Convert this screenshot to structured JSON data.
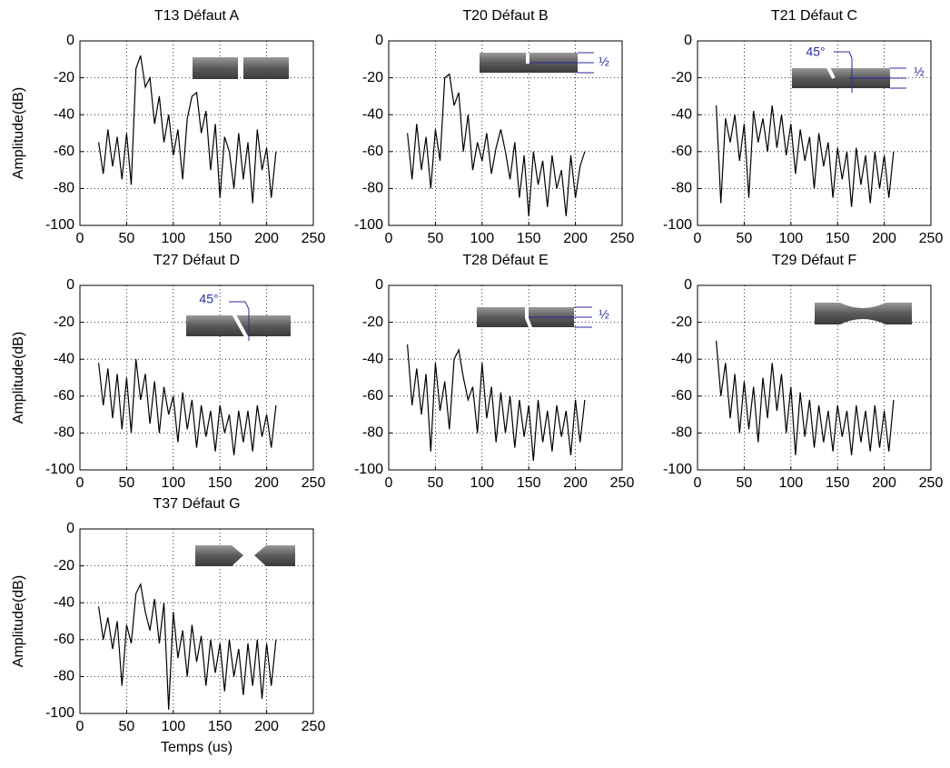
{
  "chart_data": [
    {
      "type": "line",
      "title": "T13 Défaut A",
      "ylabel": "Amplitude(dB)",
      "color": "#000000",
      "grid": true,
      "xlim": [
        0,
        250
      ],
      "xticks": [
        0,
        50,
        100,
        150,
        200,
        250
      ],
      "ylim": [
        -100,
        0
      ],
      "yticks": [
        -100,
        -80,
        -60,
        -40,
        -20,
        0
      ],
      "x": [
        20,
        25,
        30,
        35,
        40,
        45,
        50,
        55,
        60,
        65,
        70,
        75,
        80,
        85,
        90,
        95,
        100,
        105,
        110,
        115,
        120,
        125,
        130,
        135,
        140,
        145,
        150,
        155,
        160,
        165,
        170,
        175,
        180,
        185,
        190,
        195,
        200,
        205,
        210
      ],
      "values": [
        -55,
        -72,
        -48,
        -68,
        -52,
        -75,
        -50,
        -78,
        -15,
        -8,
        -25,
        -20,
        -45,
        -30,
        -55,
        -40,
        -62,
        -48,
        -75,
        -42,
        -30,
        -28,
        -50,
        -38,
        -70,
        -45,
        -85,
        -52,
        -60,
        -80,
        -50,
        -75,
        -55,
        -88,
        -48,
        -70,
        -58,
        -85,
        -60
      ]
    },
    {
      "type": "line",
      "title": "T20 Défaut B",
      "color": "#000000",
      "grid": true,
      "annotations": [
        "½"
      ],
      "xlim": [
        0,
        250
      ],
      "xticks": [
        0,
        50,
        100,
        150,
        200,
        250
      ],
      "ylim": [
        -100,
        0
      ],
      "yticks": [
        -100,
        -80,
        -60,
        -40,
        -20,
        0
      ],
      "x": [
        20,
        25,
        30,
        35,
        40,
        45,
        50,
        55,
        60,
        65,
        70,
        75,
        80,
        85,
        90,
        95,
        100,
        105,
        110,
        115,
        120,
        125,
        130,
        135,
        140,
        145,
        150,
        155,
        160,
        165,
        170,
        175,
        180,
        185,
        190,
        195,
        200,
        205,
        210
      ],
      "values": [
        -50,
        -75,
        -45,
        -70,
        -52,
        -80,
        -48,
        -65,
        -20,
        -18,
        -35,
        -28,
        -60,
        -40,
        -70,
        -55,
        -65,
        -50,
        -72,
        -58,
        -48,
        -60,
        -75,
        -55,
        -85,
        -62,
        -95,
        -60,
        -78,
        -65,
        -90,
        -62,
        -80,
        -70,
        -95,
        -62,
        -85,
        -68,
        -60
      ]
    },
    {
      "type": "line",
      "title": "T21 Défaut C",
      "color": "#000000",
      "grid": true,
      "annotations": [
        "45°",
        "½"
      ],
      "xlim": [
        0,
        250
      ],
      "xticks": [
        0,
        50,
        100,
        150,
        200,
        250
      ],
      "ylim": [
        -100,
        0
      ],
      "yticks": [
        -100,
        -80,
        -60,
        -40,
        -20,
        0
      ],
      "x": [
        20,
        25,
        30,
        35,
        40,
        45,
        50,
        55,
        60,
        65,
        70,
        75,
        80,
        85,
        90,
        95,
        100,
        105,
        110,
        115,
        120,
        125,
        130,
        135,
        140,
        145,
        150,
        155,
        160,
        165,
        170,
        175,
        180,
        185,
        190,
        195,
        200,
        205,
        210
      ],
      "values": [
        -35,
        -88,
        -42,
        -55,
        -40,
        -65,
        -45,
        -85,
        -38,
        -55,
        -42,
        -60,
        -35,
        -58,
        -40,
        -62,
        -45,
        -72,
        -48,
        -65,
        -52,
        -80,
        -50,
        -68,
        -55,
        -85,
        -58,
        -75,
        -60,
        -90,
        -58,
        -78,
        -62,
        -88,
        -60,
        -80,
        -62,
        -85,
        -60
      ]
    },
    {
      "type": "line",
      "title": "T27 Défaut D",
      "ylabel": "Amplitude(dB)",
      "color": "#000000",
      "grid": true,
      "annotations": [
        "45°"
      ],
      "xlim": [
        0,
        250
      ],
      "xticks": [
        0,
        50,
        100,
        150,
        200,
        250
      ],
      "ylim": [
        -100,
        0
      ],
      "yticks": [
        -100,
        -80,
        -60,
        -40,
        -20,
        0
      ],
      "x": [
        20,
        25,
        30,
        35,
        40,
        45,
        50,
        55,
        60,
        65,
        70,
        75,
        80,
        85,
        90,
        95,
        100,
        105,
        110,
        115,
        120,
        125,
        130,
        135,
        140,
        145,
        150,
        155,
        160,
        165,
        170,
        175,
        180,
        185,
        190,
        195,
        200,
        205,
        210
      ],
      "values": [
        -42,
        -65,
        -45,
        -72,
        -48,
        -78,
        -50,
        -80,
        -40,
        -62,
        -48,
        -75,
        -52,
        -80,
        -55,
        -70,
        -60,
        -85,
        -58,
        -78,
        -62,
        -88,
        -65,
        -82,
        -68,
        -90,
        -65,
        -80,
        -70,
        -92,
        -68,
        -85,
        -68,
        -90,
        -65,
        -82,
        -70,
        -88,
        -65
      ]
    },
    {
      "type": "line",
      "title": "T28 Défaut E",
      "color": "#000000",
      "grid": true,
      "annotations": [
        "½"
      ],
      "xlim": [
        0,
        250
      ],
      "xticks": [
        0,
        50,
        100,
        150,
        200,
        250
      ],
      "ylim": [
        -100,
        0
      ],
      "yticks": [
        -100,
        -80,
        -60,
        -40,
        -20,
        0
      ],
      "x": [
        20,
        25,
        30,
        35,
        40,
        45,
        50,
        55,
        60,
        65,
        70,
        75,
        80,
        85,
        90,
        95,
        100,
        105,
        110,
        115,
        120,
        125,
        130,
        135,
        140,
        145,
        150,
        155,
        160,
        165,
        170,
        175,
        180,
        185,
        190,
        195,
        200,
        205,
        210
      ],
      "values": [
        -32,
        -65,
        -45,
        -70,
        -48,
        -90,
        -42,
        -68,
        -52,
        -78,
        -40,
        -35,
        -50,
        -62,
        -55,
        -80,
        -42,
        -72,
        -55,
        -85,
        -58,
        -80,
        -60,
        -88,
        -62,
        -82,
        -65,
        -95,
        -62,
        -85,
        -68,
        -90,
        -65,
        -82,
        -68,
        -92,
        -62,
        -85,
        -62
      ]
    },
    {
      "type": "line",
      "title": "T29 Défaut F",
      "color": "#000000",
      "grid": true,
      "xlim": [
        0,
        250
      ],
      "xticks": [
        0,
        50,
        100,
        150,
        200,
        250
      ],
      "ylim": [
        -100,
        0
      ],
      "yticks": [
        -100,
        -80,
        -60,
        -40,
        -20,
        0
      ],
      "x": [
        20,
        25,
        30,
        35,
        40,
        45,
        50,
        55,
        60,
        65,
        70,
        75,
        80,
        85,
        90,
        95,
        100,
        105,
        110,
        115,
        120,
        125,
        130,
        135,
        140,
        145,
        150,
        155,
        160,
        165,
        170,
        175,
        180,
        185,
        190,
        195,
        200,
        205,
        210
      ],
      "values": [
        -30,
        -60,
        -42,
        -72,
        -48,
        -80,
        -52,
        -78,
        -55,
        -85,
        -50,
        -72,
        -42,
        -68,
        -48,
        -80,
        -55,
        -92,
        -58,
        -82,
        -62,
        -88,
        -65,
        -85,
        -68,
        -90,
        -65,
        -82,
        -68,
        -92,
        -65,
        -85,
        -68,
        -90,
        -65,
        -88,
        -68,
        -90,
        -62
      ]
    },
    {
      "type": "line",
      "title": "T37 Défaut G",
      "ylabel": "Amplitude(dB)",
      "xlabel": "Temps (us)",
      "color": "#000000",
      "grid": true,
      "xlim": [
        0,
        250
      ],
      "xticks": [
        0,
        50,
        100,
        150,
        200,
        250
      ],
      "ylim": [
        -100,
        0
      ],
      "yticks": [
        -100,
        -80,
        -60,
        -40,
        -20,
        0
      ],
      "x": [
        20,
        25,
        30,
        35,
        40,
        45,
        50,
        55,
        60,
        65,
        70,
        75,
        80,
        85,
        90,
        95,
        100,
        105,
        110,
        115,
        120,
        125,
        130,
        135,
        140,
        145,
        150,
        155,
        160,
        165,
        170,
        175,
        180,
        185,
        190,
        195,
        200,
        205,
        210
      ],
      "values": [
        -42,
        -60,
        -48,
        -65,
        -50,
        -85,
        -52,
        -62,
        -35,
        -30,
        -45,
        -55,
        -38,
        -62,
        -40,
        -98,
        -45,
        -70,
        -55,
        -80,
        -52,
        -72,
        -58,
        -85,
        -60,
        -78,
        -62,
        -88,
        -60,
        -80,
        -65,
        -90,
        -62,
        -85,
        -60,
        -92,
        -62,
        -85,
        -60
      ]
    }
  ]
}
